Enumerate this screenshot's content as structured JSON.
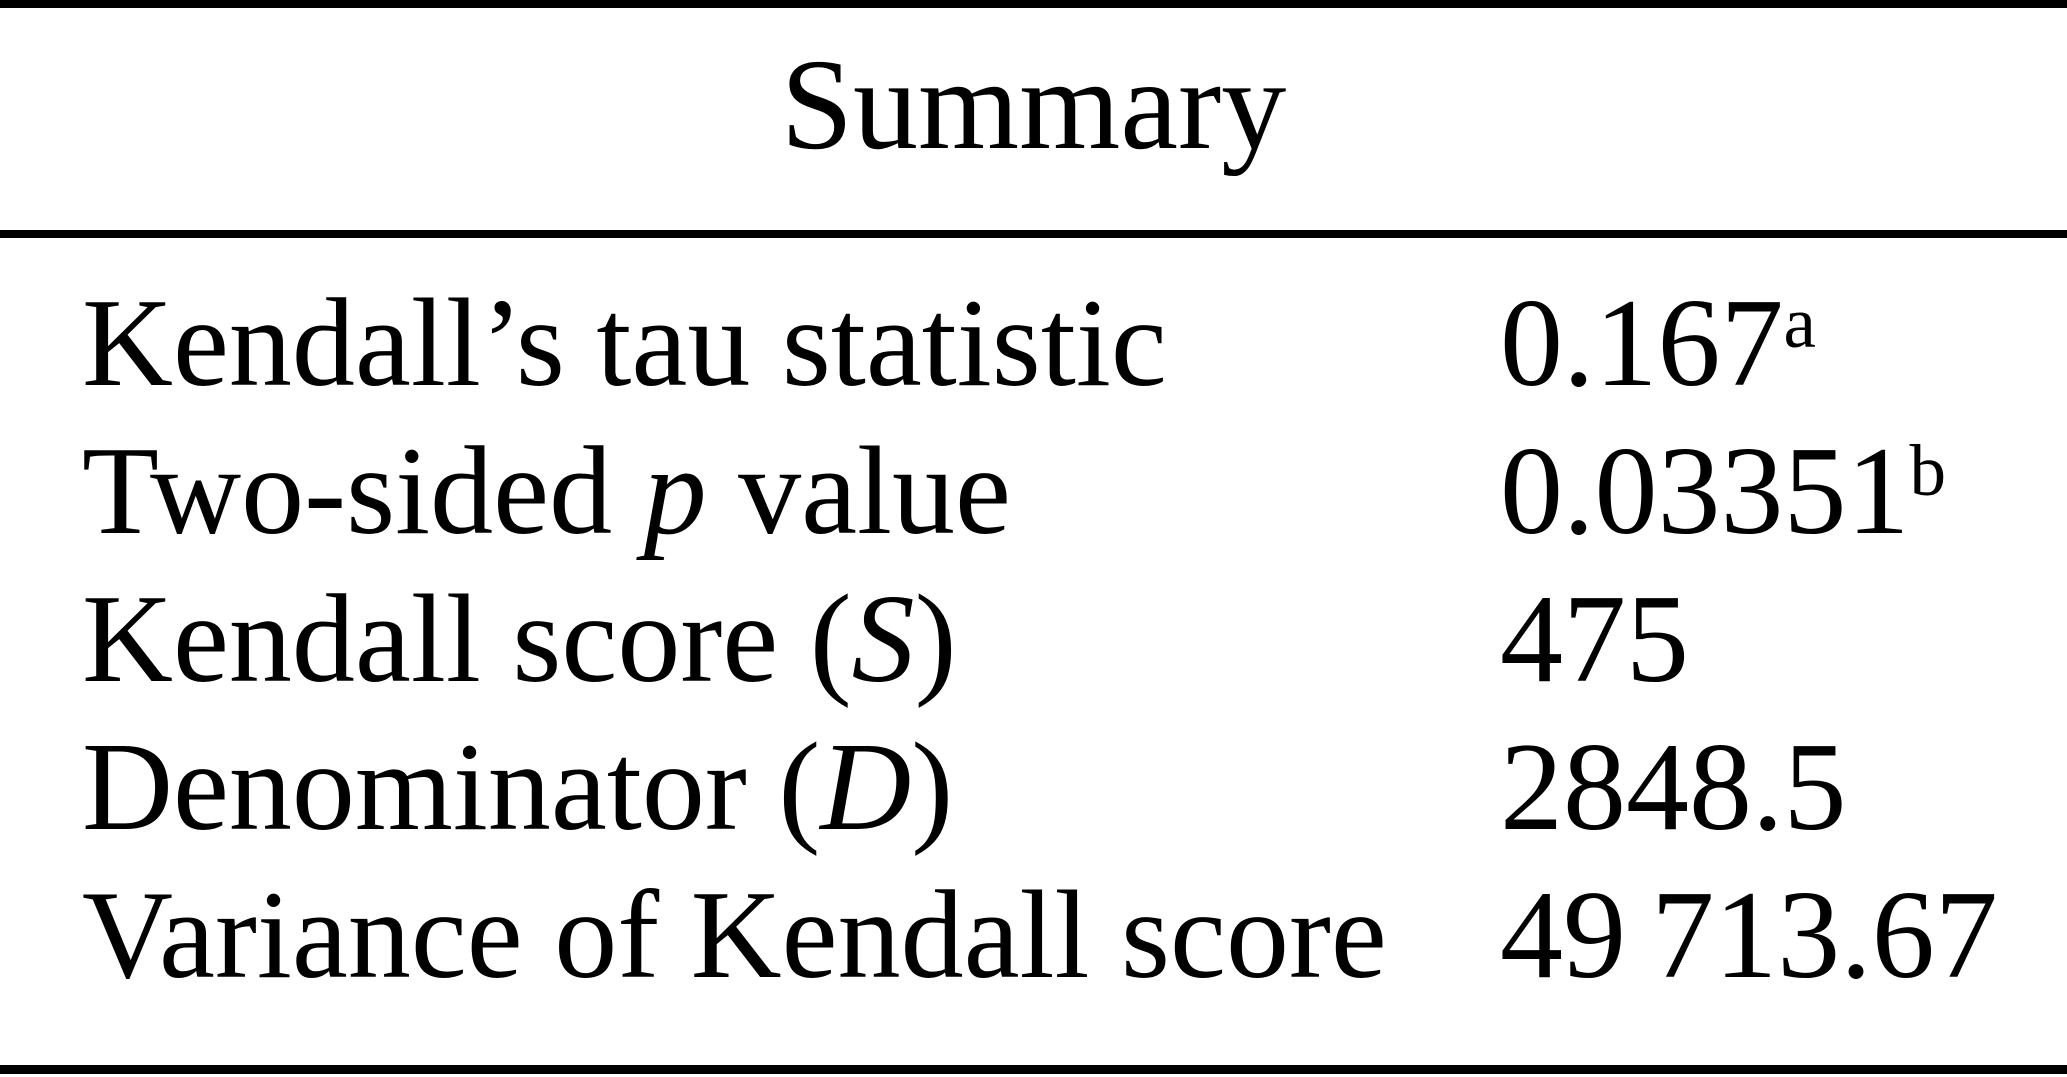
{
  "table": {
    "title": "Summary",
    "rows": [
      {
        "label_pre": "Kendall’s tau statistic",
        "label_italic": "",
        "label_post": "",
        "value": "0.167",
        "superscript": "a"
      },
      {
        "label_pre": "Two-sided ",
        "label_italic": "p",
        "label_post": " value",
        "value": "0.03351",
        "superscript": "b"
      },
      {
        "label_pre": "Kendall score (",
        "label_italic": "S",
        "label_post": ")",
        "value": "475",
        "superscript": ""
      },
      {
        "label_pre": "Denominator (",
        "label_italic": "D",
        "label_post": ")",
        "value": "2848.5",
        "superscript": ""
      },
      {
        "label_pre": "Variance of Kendall score",
        "label_italic": "",
        "label_post": "",
        "value": "49 713.67",
        "superscript": ""
      }
    ]
  },
  "colors": {
    "background": "#ffffff",
    "text": "#000000",
    "rule": "#000000"
  }
}
